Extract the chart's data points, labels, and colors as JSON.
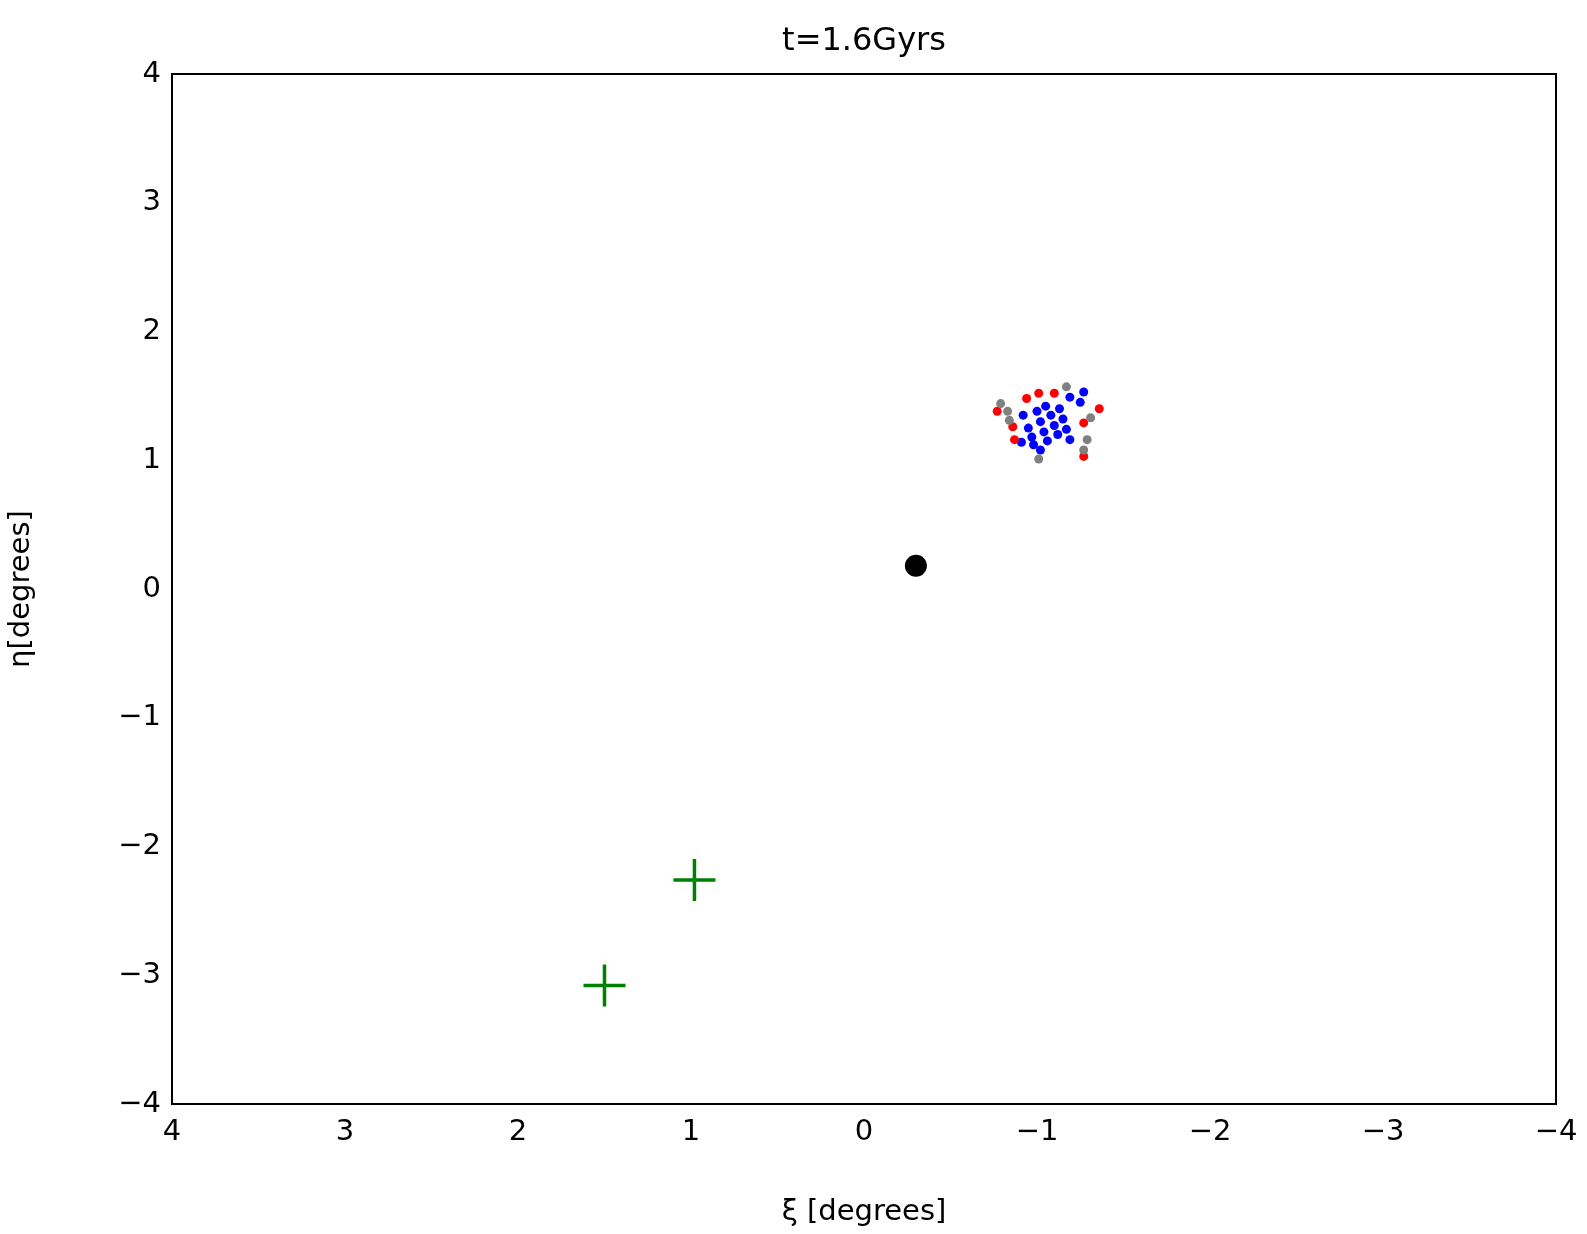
{
  "chart_data": {
    "type": "scatter",
    "title": "t=1.6Gyrs",
    "xlabel": "ξ [degrees]",
    "ylabel": "η[degrees]",
    "xlim": [
      4,
      -4
    ],
    "ylim": [
      -4,
      4
    ],
    "xticks": [
      4,
      3,
      2,
      1,
      0,
      {
        "value": -1,
        "label": "−1"
      },
      {
        "value": -2,
        "label": "−2"
      },
      {
        "value": -3,
        "label": "−3"
      },
      {
        "value": -4,
        "label": "−4"
      }
    ],
    "yticks": [
      {
        "value": -4,
        "label": "−4"
      },
      {
        "value": -3,
        "label": "−3"
      },
      {
        "value": -2,
        "label": "−2"
      },
      {
        "value": -1,
        "label": "−1"
      },
      0,
      1,
      2,
      3,
      4
    ],
    "grid": false,
    "legend": false,
    "series": [
      {
        "color": "#808080",
        "marker": "circle",
        "x": [
          -0.79,
          -0.83,
          -1.17,
          -1.31,
          -1.29,
          -1.01,
          -1.27,
          -0.84
        ],
        "values": [
          1.44,
          1.38,
          1.57,
          1.33,
          1.16,
          1.01,
          1.08,
          1.31
        ]
      },
      {
        "color": "#ff0000",
        "marker": "circle",
        "x": [
          -0.77,
          -1.01,
          -1.1,
          -1.36,
          -1.27,
          -0.87,
          -0.94,
          -1.27,
          -0.86
        ],
        "values": [
          1.38,
          1.52,
          1.52,
          1.4,
          1.03,
          1.16,
          1.48,
          1.29,
          1.26
        ]
      },
      {
        "color": "#0000ff",
        "marker": "circle",
        "x": [
          -1.27,
          -1.19,
          -1.25,
          -0.91,
          -1.02,
          -0.92,
          -0.95,
          -0.97,
          -1.0,
          -1.02,
          -1.04,
          -1.06,
          -1.08,
          -1.1,
          -1.12,
          -1.15,
          -1.17,
          -1.19,
          -1.05,
          -0.98,
          -1.13
        ],
        "values": [
          1.53,
          1.49,
          1.45,
          1.14,
          1.08,
          1.35,
          1.25,
          1.18,
          1.38,
          1.3,
          1.22,
          1.15,
          1.35,
          1.27,
          1.2,
          1.32,
          1.24,
          1.16,
          1.42,
          1.12,
          1.4
        ]
      },
      {
        "color": "#000000",
        "marker": "circle",
        "x": [
          -0.3
        ],
        "values": [
          0.18
        ]
      },
      {
        "color": "#008000",
        "marker": "cross",
        "x": [
          0.98,
          1.5
        ],
        "values": [
          -2.26,
          -3.08
        ]
      }
    ]
  }
}
